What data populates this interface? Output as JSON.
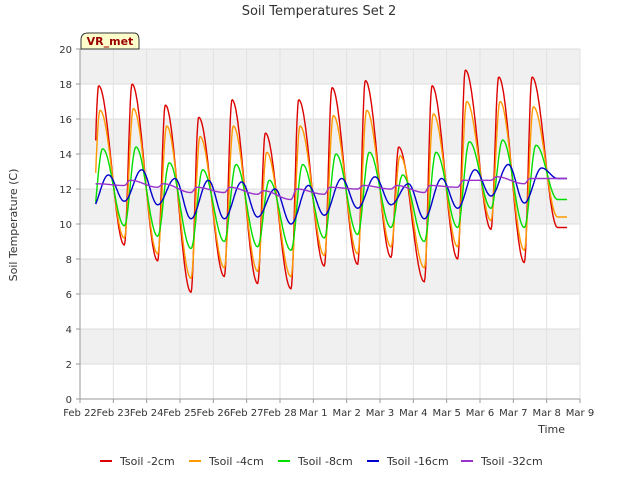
{
  "chart_data": {
    "type": "line",
    "title": "Soil Temperatures Set 2",
    "xlabel": "Time",
    "ylabel": "Soil Temperature (C)",
    "badge": "VR_met",
    "x_tick_labels": [
      "Feb 22",
      "Feb 23",
      "Feb 24",
      "Feb 25",
      "Feb 26",
      "Feb 27",
      "Feb 28",
      "Mar 1",
      "Mar 2",
      "Mar 3",
      "Mar 4",
      "Mar 5",
      "Mar 6",
      "Mar 7",
      "Mar 8",
      "Mar 9"
    ],
    "x_unit": "day index (0 = Feb 22, 15 = Mar 9)",
    "xlim": [
      0,
      15
    ],
    "ylim": [
      0,
      20
    ],
    "y_ticks": [
      0,
      2,
      4,
      6,
      8,
      10,
      12,
      14,
      16,
      18,
      20
    ],
    "grid": "horizontal bands",
    "legend_position": "bottom",
    "series": [
      {
        "name": "Tsoil -2cm",
        "color": "#dd0000",
        "peak_offset": 0.56,
        "day_peaks": [
          17.9,
          18.0,
          16.8,
          16.1,
          17.1,
          15.2,
          17.1,
          17.8,
          18.2,
          14.4,
          17.9,
          18.8,
          18.4,
          18.4
        ],
        "day_mins": [
          8.5,
          8.8,
          7.9,
          6.1,
          7.0,
          6.6,
          6.3,
          7.6,
          7.7,
          8.1,
          6.7,
          8.0,
          9.7,
          7.8,
          9.8
        ]
      },
      {
        "name": "Tsoil -4cm",
        "color": "#ff9900",
        "peak_offset": 0.6,
        "day_peaks": [
          16.5,
          16.6,
          15.6,
          15.0,
          15.6,
          14.1,
          15.6,
          16.2,
          16.5,
          13.9,
          16.3,
          17.0,
          17.0,
          16.7
        ],
        "day_mins": [
          8.9,
          9.2,
          8.3,
          6.9,
          7.5,
          7.3,
          7.0,
          8.2,
          8.3,
          8.7,
          7.5,
          8.7,
          10.2,
          8.5,
          10.4
        ]
      },
      {
        "name": "Tsoil -8cm",
        "color": "#00dd00",
        "peak_offset": 0.68,
        "day_peaks": [
          14.3,
          14.4,
          13.5,
          13.1,
          13.4,
          12.5,
          13.4,
          14.0,
          14.1,
          12.8,
          14.1,
          14.7,
          14.8,
          14.5
        ],
        "day_mins": [
          9.6,
          9.9,
          9.3,
          8.6,
          9.0,
          8.7,
          8.5,
          9.2,
          9.4,
          9.8,
          9.0,
          9.8,
          10.9,
          9.8,
          11.4
        ]
      },
      {
        "name": "Tsoil -16cm",
        "color": "#0000cc",
        "peak_offset": 0.85,
        "day_peaks": [
          12.8,
          13.1,
          12.6,
          12.5,
          12.4,
          12.0,
          12.2,
          12.6,
          12.7,
          12.3,
          12.6,
          13.1,
          13.4,
          13.2
        ],
        "day_mins": [
          10.8,
          11.3,
          11.1,
          10.3,
          10.3,
          10.4,
          10.0,
          10.5,
          10.9,
          11.1,
          10.3,
          10.9,
          11.6,
          11.2,
          12.6
        ]
      },
      {
        "name": "Tsoil -32cm",
        "color": "#9933cc",
        "peak_offset": 0.5,
        "day_peaks": [
          12.3,
          12.5,
          12.3,
          12.1,
          12.1,
          11.9,
          12.0,
          12.1,
          12.2,
          12.2,
          12.2,
          12.5,
          12.7,
          12.6
        ],
        "day_mins": [
          11.9,
          12.2,
          12.1,
          11.8,
          11.8,
          11.7,
          11.4,
          11.7,
          12.0,
          12.0,
          11.8,
          12.1,
          12.5,
          12.3,
          12.6
        ]
      }
    ]
  }
}
